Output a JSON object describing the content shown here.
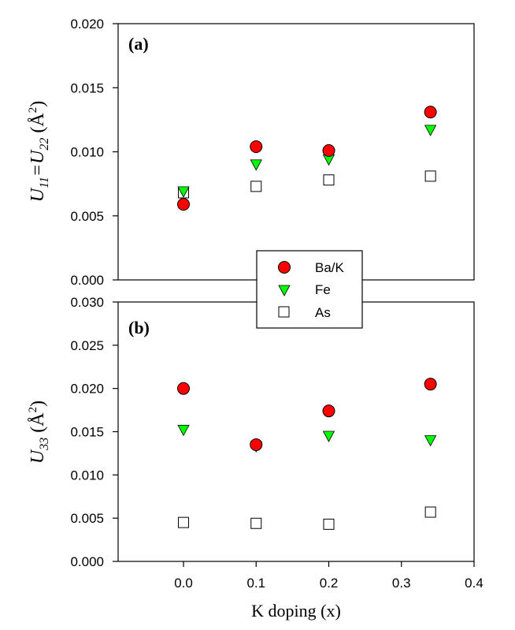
{
  "chart_data": [
    {
      "type": "scatter",
      "panel_label": "(a)",
      "ylabel": {
        "main": "U",
        "sub1": "11",
        "eq": "=U",
        "sub2": "22",
        "unit": " (Å",
        "sup": "2",
        "close": ")"
      },
      "ylim": [
        0.0,
        0.02
      ],
      "yticks": [
        "0.000",
        "0.005",
        "0.010",
        "0.015",
        "0.020"
      ],
      "ytick_values": [
        0.0,
        0.005,
        0.01,
        0.015,
        0.02
      ],
      "series": [
        {
          "name": "Ba/K",
          "x": [
            0.0,
            0.1,
            0.2,
            0.34
          ],
          "y": [
            0.0059,
            0.0104,
            0.0101,
            0.0131
          ]
        },
        {
          "name": "Fe",
          "x": [
            0.0,
            0.1,
            0.2,
            0.34
          ],
          "y": [
            0.0069,
            0.009,
            0.0094,
            0.0117
          ]
        },
        {
          "name": "As",
          "x": [
            0.0,
            0.1,
            0.2,
            0.34
          ],
          "y": [
            0.0068,
            0.0073,
            0.0078,
            0.0081
          ]
        }
      ]
    },
    {
      "type": "scatter",
      "panel_label": "(b)",
      "ylabel": {
        "main": "U",
        "sub1": "33",
        "unit": " (Å",
        "sup": "2",
        "close": ")"
      },
      "ylim": [
        0.0,
        0.03
      ],
      "yticks": [
        "0.000",
        "0.005",
        "0.010",
        "0.015",
        "0.020",
        "0.025",
        "0.030"
      ],
      "ytick_values": [
        0.0,
        0.005,
        0.01,
        0.015,
        0.02,
        0.025,
        0.03
      ],
      "xlabel": "K doping (x)",
      "xlim": [
        -0.09,
        0.4
      ],
      "xticks": [
        "0.0",
        "0.1",
        "0.2",
        "0.3",
        "0.4"
      ],
      "xtick_values": [
        0.0,
        0.1,
        0.2,
        0.3,
        0.4
      ],
      "series": [
        {
          "name": "Ba/K",
          "x": [
            0.0,
            0.1,
            0.2,
            0.34
          ],
          "y": [
            0.02,
            0.0135,
            0.0174,
            0.0205
          ]
        },
        {
          "name": "Fe",
          "x": [
            0.0,
            0.1,
            0.2,
            0.34
          ],
          "y": [
            0.0152,
            0.0133,
            0.0145,
            0.014
          ]
        },
        {
          "name": "As",
          "x": [
            0.0,
            0.1,
            0.2,
            0.34
          ],
          "y": [
            0.0045,
            0.0044,
            0.0043,
            0.0057
          ]
        }
      ]
    }
  ],
  "legend": {
    "placement": "center, overlapping both panels",
    "entries": [
      {
        "label": "Ba/K",
        "marker": "circle",
        "color": "#ff0000"
      },
      {
        "label": "Fe",
        "marker": "triangle-down",
        "color": "#00ff00"
      },
      {
        "label": "As",
        "marker": "square-open",
        "color": "#ffffff"
      }
    ]
  },
  "colors": {
    "ba_k": "#ff0000",
    "fe": "#00ff00",
    "as": "#ffffff",
    "axis": "#000000"
  }
}
